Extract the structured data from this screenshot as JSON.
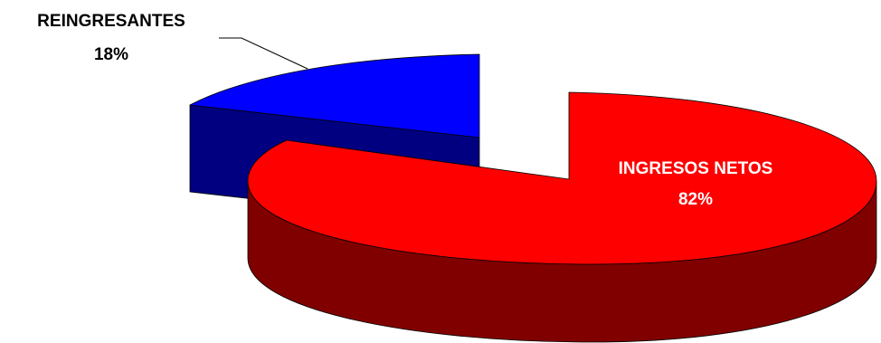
{
  "chart_data": {
    "type": "pie",
    "style": "3d-exploded",
    "slices": [
      {
        "label": "INGRESOS NETOS",
        "value": 82,
        "value_label": "82%",
        "color": "#ff0000",
        "side_color": "#800000",
        "label_color": "#ffffff"
      },
      {
        "label": "REINGRESANTES",
        "value": 18,
        "value_label": "18%",
        "color": "#0000ff",
        "side_color": "#000080",
        "label_color": "#000000"
      }
    ]
  }
}
